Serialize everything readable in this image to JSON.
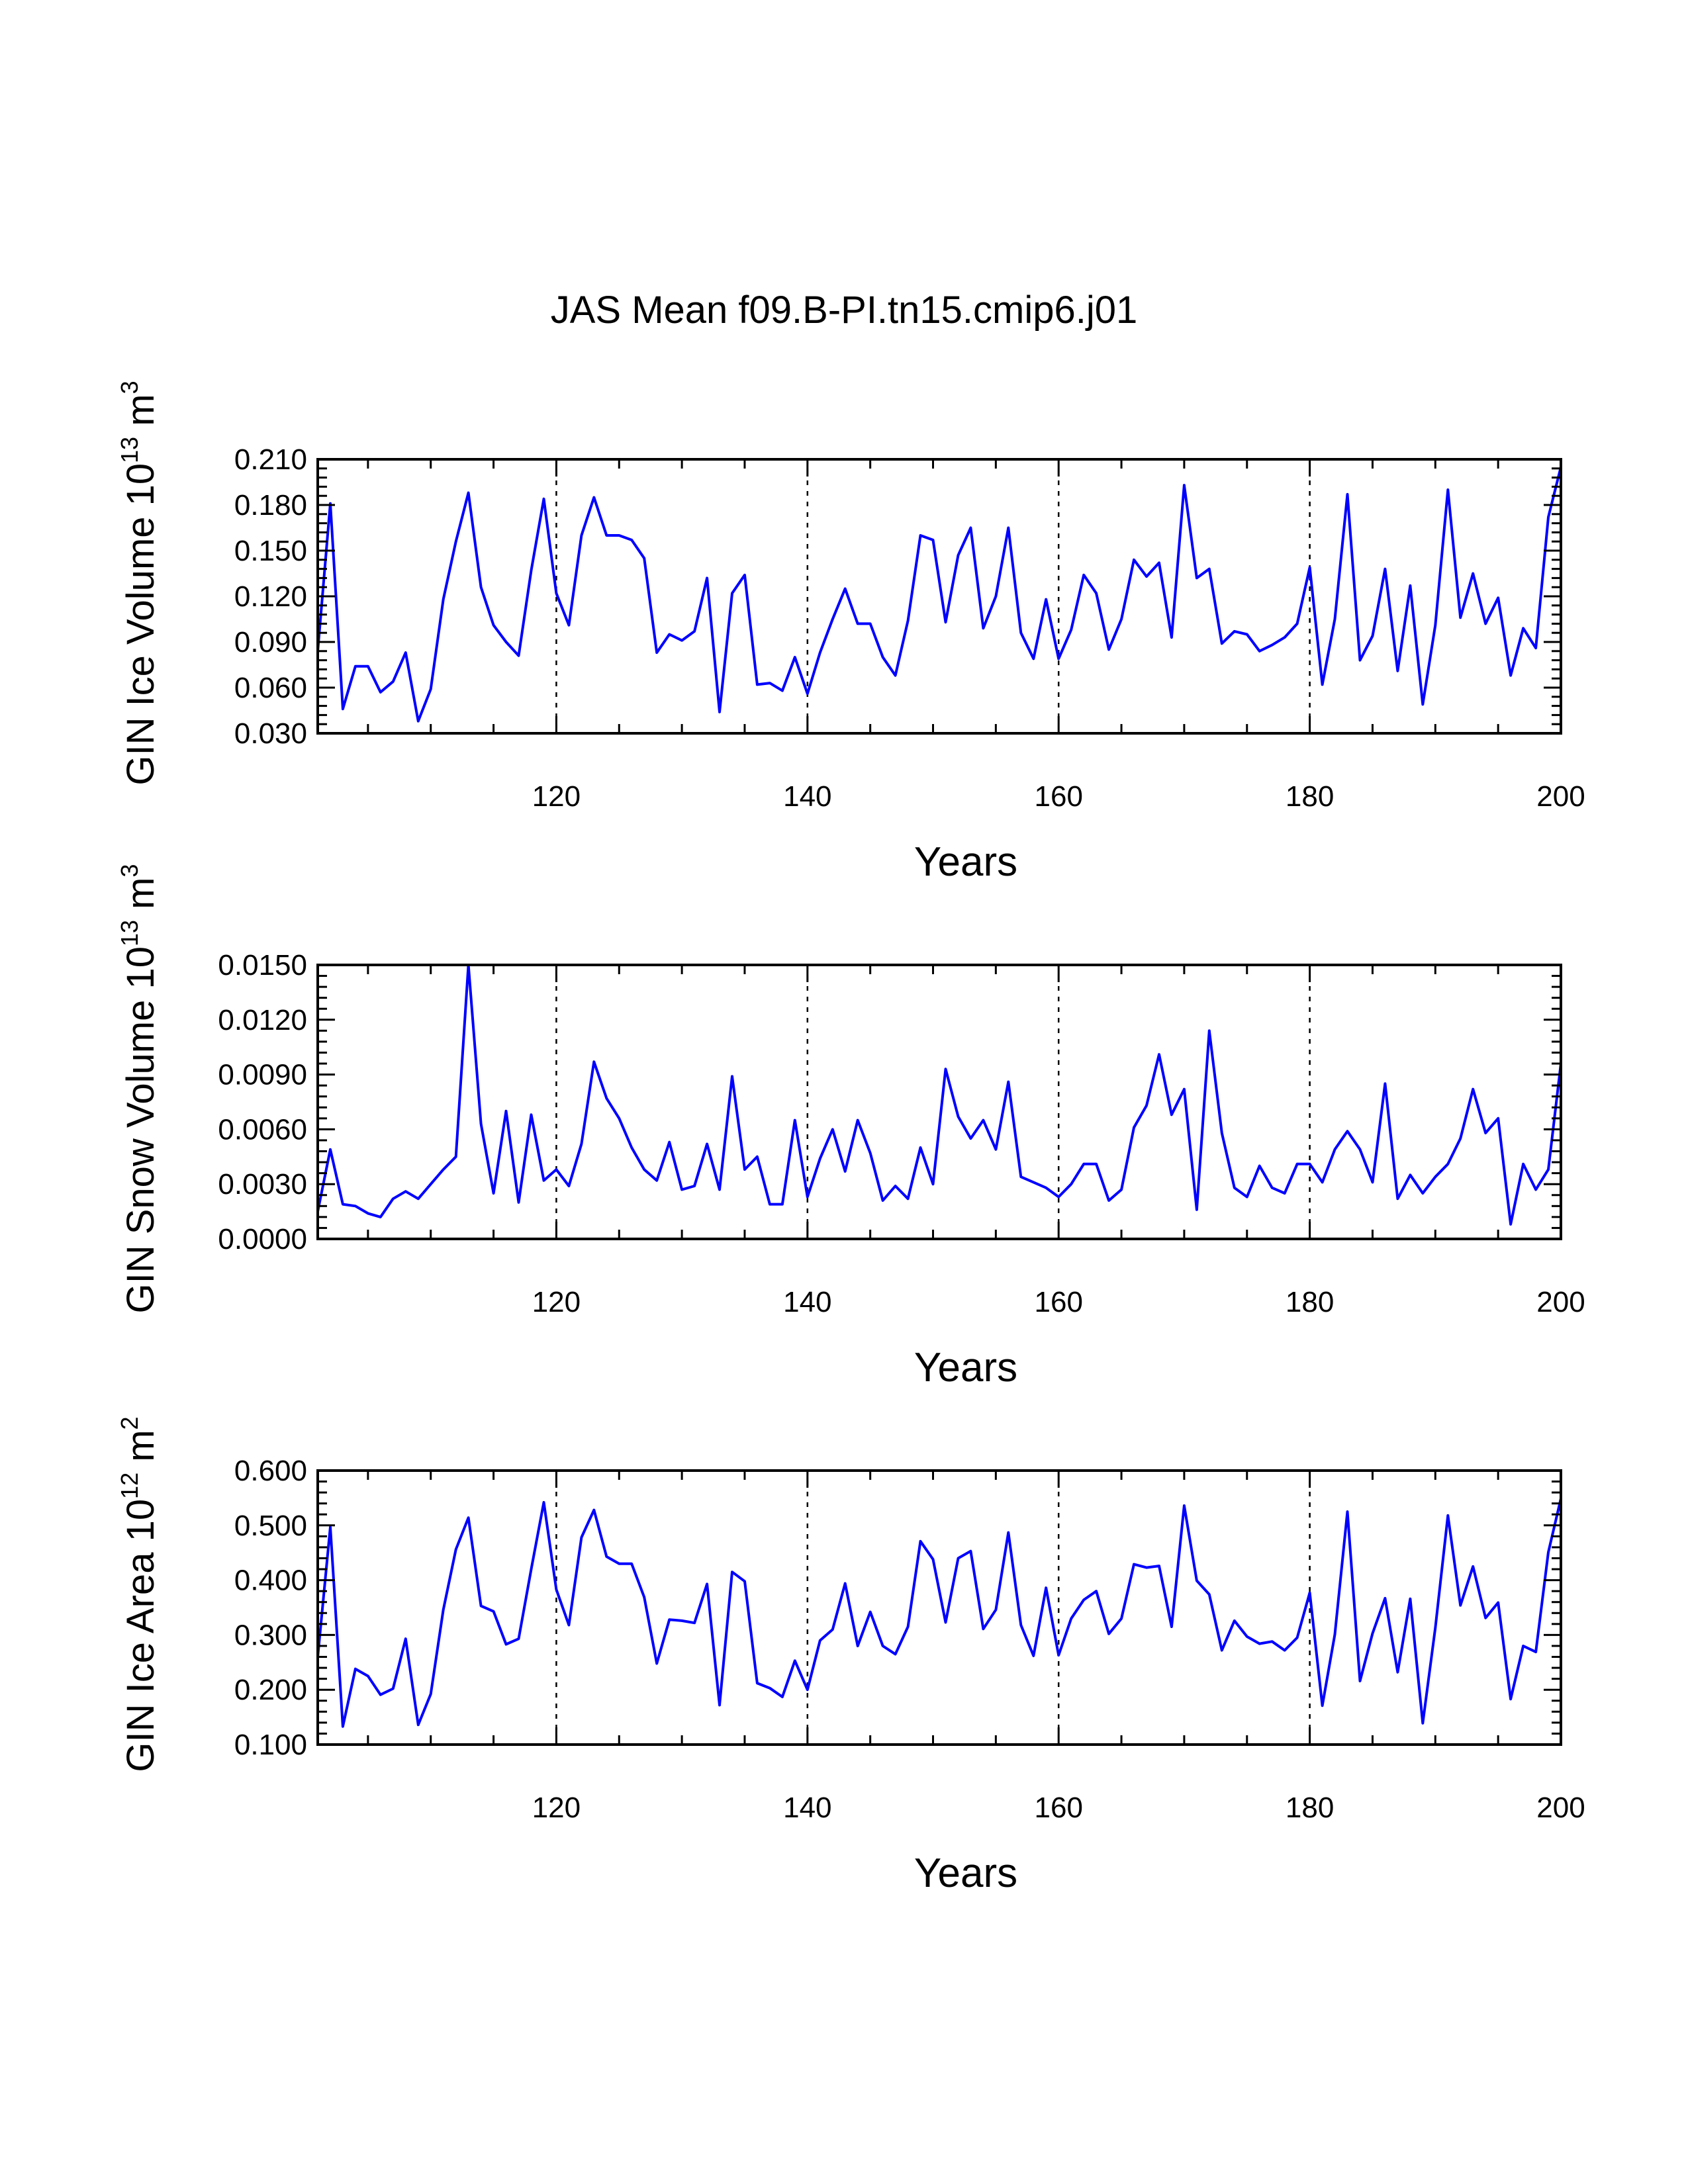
{
  "chart_data": {
    "title": "JAS Mean f09.B-PI.tn15.cmip6.j01",
    "series_color": "#0000ff",
    "panels": [
      {
        "type": "line",
        "xlabel": "Years",
        "ylabel": {
          "main": "GIN Ice Volume 10",
          "exp": "13",
          "unit": " m",
          "unit_exp": "3"
        },
        "xlim": [
          101,
          200
        ],
        "ylim": [
          0.03,
          0.21
        ],
        "xticks": [
          120,
          140,
          160,
          180,
          200
        ],
        "yticks": [
          0.03,
          0.06,
          0.09,
          0.12,
          0.15,
          0.18,
          0.21
        ],
        "ytick_labels": [
          "0.030",
          "0.060",
          "0.090",
          "0.120",
          "0.150",
          "0.180",
          "0.210"
        ],
        "x_start": 101,
        "values": [
          0.084,
          0.181,
          0.046,
          0.074,
          0.074,
          0.057,
          0.064,
          0.083,
          0.038,
          0.059,
          0.118,
          0.156,
          0.188,
          0.126,
          0.101,
          0.09,
          0.081,
          0.137,
          0.184,
          0.122,
          0.101,
          0.16,
          0.185,
          0.16,
          0.16,
          0.157,
          0.145,
          0.083,
          0.095,
          0.091,
          0.097,
          0.132,
          0.044,
          0.122,
          0.134,
          0.062,
          0.063,
          0.058,
          0.08,
          0.056,
          0.083,
          0.105,
          0.125,
          0.102,
          0.102,
          0.08,
          0.068,
          0.104,
          0.16,
          0.157,
          0.103,
          0.147,
          0.165,
          0.099,
          0.12,
          0.165,
          0.096,
          0.079,
          0.118,
          0.079,
          0.098,
          0.134,
          0.122,
          0.085,
          0.105,
          0.144,
          0.133,
          0.142,
          0.093,
          0.193,
          0.132,
          0.138,
          0.089,
          0.097,
          0.095,
          0.084,
          0.088,
          0.093,
          0.102,
          0.139,
          0.062,
          0.105,
          0.187,
          0.078,
          0.094,
          0.138,
          0.071,
          0.127,
          0.049,
          0.101,
          0.19,
          0.106,
          0.135,
          0.102,
          0.119,
          0.068,
          0.099,
          0.086,
          0.172,
          0.205
        ]
      },
      {
        "type": "line",
        "xlabel": "Years",
        "ylabel": {
          "main": "GIN Snow Volume 10",
          "exp": "13",
          "unit": " m",
          "unit_exp": "3"
        },
        "xlim": [
          101,
          200
        ],
        "ylim": [
          0.0,
          0.015
        ],
        "xticks": [
          120,
          140,
          160,
          180,
          200
        ],
        "yticks": [
          0.0,
          0.003,
          0.006,
          0.009,
          0.012,
          0.015
        ],
        "ytick_labels": [
          "0.0000",
          "0.0030",
          "0.0060",
          "0.0090",
          "0.0120",
          "0.0150"
        ],
        "x_start": 101,
        "values": [
          0.0015,
          0.0049,
          0.0019,
          0.0018,
          0.0014,
          0.0012,
          0.0022,
          0.0026,
          0.0022,
          0.003,
          0.0038,
          0.0045,
          0.015,
          0.0063,
          0.0025,
          0.007,
          0.002,
          0.0068,
          0.0032,
          0.0038,
          0.0029,
          0.0052,
          0.0097,
          0.0077,
          0.0066,
          0.005,
          0.0038,
          0.0032,
          0.0053,
          0.0027,
          0.0029,
          0.0052,
          0.0027,
          0.0089,
          0.0038,
          0.0045,
          0.0019,
          0.0019,
          0.0065,
          0.0023,
          0.0044,
          0.006,
          0.0037,
          0.0065,
          0.0047,
          0.0021,
          0.0029,
          0.0022,
          0.005,
          0.003,
          0.0093,
          0.0067,
          0.0055,
          0.0065,
          0.0049,
          0.0086,
          0.0034,
          0.0031,
          0.0028,
          0.0023,
          0.003,
          0.0041,
          0.0041,
          0.0021,
          0.0027,
          0.0061,
          0.0073,
          0.0101,
          0.0068,
          0.0082,
          0.0016,
          0.0114,
          0.0058,
          0.0028,
          0.0023,
          0.004,
          0.0028,
          0.0025,
          0.0041,
          0.0041,
          0.0031,
          0.0049,
          0.0059,
          0.0049,
          0.0031,
          0.0085,
          0.0022,
          0.0035,
          0.0025,
          0.0034,
          0.0041,
          0.0055,
          0.0082,
          0.0058,
          0.0066,
          0.0008,
          0.0041,
          0.0027,
          0.0038,
          0.0096
        ]
      },
      {
        "type": "line",
        "xlabel": "Years",
        "ylabel": {
          "main": "GIN Ice Area 10",
          "exp": "12",
          "unit": " m",
          "unit_exp": "2"
        },
        "xlim": [
          101,
          200
        ],
        "ylim": [
          0.1,
          0.6
        ],
        "xticks": [
          120,
          140,
          160,
          180,
          200
        ],
        "yticks": [
          0.1,
          0.2,
          0.3,
          0.4,
          0.5,
          0.6
        ],
        "ytick_labels": [
          "0.100",
          "0.200",
          "0.300",
          "0.400",
          "0.500",
          "0.600"
        ],
        "x_start": 101,
        "values": [
          0.26,
          0.497,
          0.133,
          0.238,
          0.225,
          0.191,
          0.202,
          0.293,
          0.136,
          0.192,
          0.346,
          0.456,
          0.514,
          0.353,
          0.343,
          0.283,
          0.293,
          0.42,
          0.542,
          0.383,
          0.318,
          0.478,
          0.528,
          0.443,
          0.43,
          0.43,
          0.369,
          0.248,
          0.328,
          0.326,
          0.322,
          0.393,
          0.172,
          0.415,
          0.398,
          0.212,
          0.203,
          0.187,
          0.253,
          0.2,
          0.29,
          0.31,
          0.394,
          0.28,
          0.342,
          0.28,
          0.265,
          0.315,
          0.471,
          0.438,
          0.323,
          0.44,
          0.453,
          0.311,
          0.346,
          0.487,
          0.318,
          0.262,
          0.386,
          0.263,
          0.33,
          0.364,
          0.38,
          0.302,
          0.33,
          0.429,
          0.423,
          0.426,
          0.315,
          0.536,
          0.399,
          0.374,
          0.272,
          0.326,
          0.297,
          0.284,
          0.288,
          0.272,
          0.295,
          0.377,
          0.171,
          0.301,
          0.525,
          0.216,
          0.303,
          0.367,
          0.232,
          0.366,
          0.139,
          0.313,
          0.518,
          0.354,
          0.425,
          0.331,
          0.359,
          0.183,
          0.28,
          0.269,
          0.451,
          0.549
        ]
      }
    ]
  }
}
